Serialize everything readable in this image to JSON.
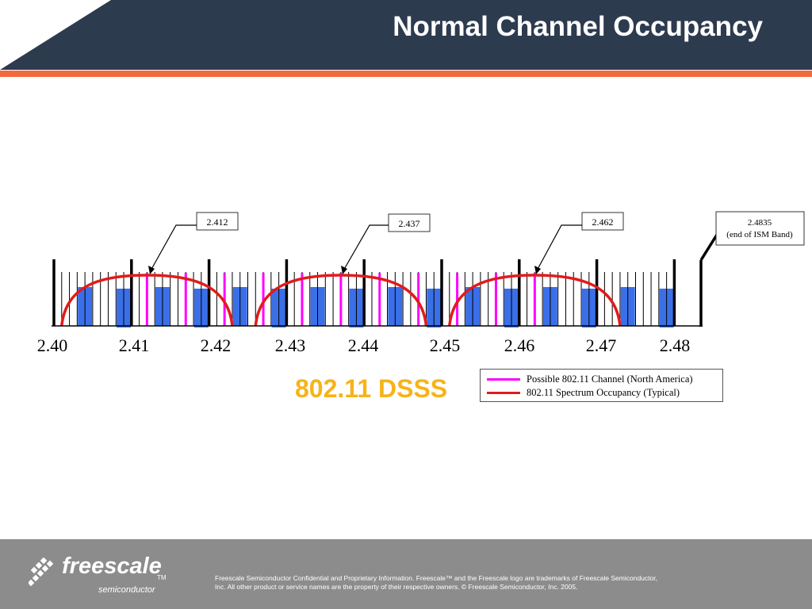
{
  "slide": {
    "title": "Normal Channel Occupancy",
    "subtitle": "802.11 DSSS"
  },
  "colors": {
    "header_bg": "#2d3b4f",
    "header_accent": "#f26a3d",
    "channel_line": "#ff00ff",
    "spectrum_curve": "#e21b1b",
    "signal_bar": "#3a6fe8",
    "subtitle": "#f7b318",
    "footer_bg": "#8c8c8c"
  },
  "callouts": [
    {
      "label": "2.412",
      "target": 2.412
    },
    {
      "label": "2.437",
      "target": 2.437
    },
    {
      "label": "2.462",
      "target": 2.462
    },
    {
      "label": "2.4835",
      "note": "(end of ISM Band)",
      "target": 2.4835
    }
  ],
  "axis": {
    "ticks": [
      "2.40",
      "2.41",
      "2.42",
      "2.43",
      "2.44",
      "2.45",
      "2.46",
      "2.47",
      "2.48"
    ]
  },
  "channels": {
    "possible_centers": [
      2.412,
      2.417,
      2.422,
      2.427,
      2.432,
      2.437,
      2.442,
      2.447,
      2.452,
      2.457,
      2.462
    ],
    "occupied_centers": [
      2.412,
      2.437,
      2.462
    ]
  },
  "legend": {
    "items": [
      {
        "label": "Possible 802.11 Channel (North America)",
        "color": "#ff00ff"
      },
      {
        "label": "802.11 Spectrum Occupancy (Typical)",
        "color": "#e21b1b"
      }
    ]
  },
  "footer": {
    "logo_word": "freescale",
    "logo_tm": "TM",
    "logo_sub": "semiconductor",
    "legal": "Freescale Semiconductor Confidential and Proprietary Information. Freescale™ and the Freescale logo are trademarks of Freescale Semiconductor, Inc. All other product or service names are the property of their respective owners. © Freescale Semiconductor, Inc. 2005."
  }
}
